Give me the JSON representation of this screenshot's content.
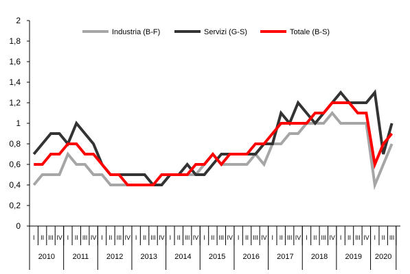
{
  "chart_data": {
    "type": "line",
    "title": "",
    "xlabel": "",
    "ylabel": "",
    "ylim": [
      0,
      2
    ],
    "yticks": [
      "0",
      "0,2",
      "0,4",
      "0,6",
      "0,8",
      "1",
      "1,2",
      "1,4",
      "1,6",
      "1,8",
      "2"
    ],
    "quarter_labels": [
      "I",
      "II",
      "III",
      "IV"
    ],
    "years": [
      "2010",
      "2011",
      "2012",
      "2013",
      "2014",
      "2015",
      "2016",
      "2017",
      "2018",
      "2019",
      "2020"
    ],
    "x": [
      "2010 I",
      "2010 II",
      "2010 III",
      "2010 IV",
      "2011 I",
      "2011 II",
      "2011 III",
      "2011 IV",
      "2012 I",
      "2012 II",
      "2012 III",
      "2012 IV",
      "2013 I",
      "2013 II",
      "2013 III",
      "2013 IV",
      "2014 I",
      "2014 II",
      "2014 III",
      "2014 IV",
      "2015 I",
      "2015 II",
      "2015 III",
      "2015 IV",
      "2016 I",
      "2016 II",
      "2016 III",
      "2016 IV",
      "2017 I",
      "2017 II",
      "2017 III",
      "2017 IV",
      "2018 I",
      "2018 II",
      "2018 III",
      "2018 IV",
      "2019 I",
      "2019 II",
      "2019 III",
      "2019 IV",
      "2020 I",
      "2020 II",
      "2020 III"
    ],
    "grid": false,
    "legend_position": "top",
    "series": [
      {
        "name": "Industria (B-F)",
        "color": "#a6a6a6",
        "values": [
          0.4,
          0.5,
          0.5,
          0.5,
          0.7,
          0.6,
          0.6,
          0.5,
          0.5,
          0.4,
          0.4,
          0.4,
          0.4,
          0.4,
          0.4,
          0.4,
          0.5,
          0.5,
          0.5,
          0.5,
          0.6,
          0.7,
          0.6,
          0.6,
          0.6,
          0.6,
          0.7,
          0.6,
          0.8,
          0.8,
          0.9,
          0.9,
          1.0,
          1.0,
          1.0,
          1.1,
          1.0,
          1.0,
          1.0,
          1.0,
          0.4,
          0.6,
          0.8
        ]
      },
      {
        "name": "Servizi (G-S)",
        "color": "#333333",
        "values": [
          0.7,
          0.8,
          0.9,
          0.9,
          0.8,
          1.0,
          0.9,
          0.8,
          0.6,
          0.5,
          0.5,
          0.5,
          0.5,
          0.5,
          0.4,
          0.4,
          0.5,
          0.5,
          0.6,
          0.5,
          0.5,
          0.6,
          0.7,
          0.7,
          0.7,
          0.7,
          0.7,
          0.8,
          0.8,
          1.1,
          1.0,
          1.2,
          1.1,
          1.0,
          1.1,
          1.2,
          1.3,
          1.2,
          1.2,
          1.2,
          1.3,
          0.7,
          1.0
        ]
      },
      {
        "name": "Totale (B-S)",
        "color": "#ff0000",
        "values": [
          0.6,
          0.6,
          0.7,
          0.7,
          0.8,
          0.8,
          0.7,
          0.7,
          0.6,
          0.5,
          0.5,
          0.4,
          0.4,
          0.4,
          0.4,
          0.5,
          0.5,
          0.5,
          0.5,
          0.6,
          0.6,
          0.7,
          0.6,
          0.7,
          0.7,
          0.7,
          0.8,
          0.8,
          0.9,
          1.0,
          1.0,
          1.0,
          1.0,
          1.1,
          1.1,
          1.2,
          1.2,
          1.2,
          1.1,
          1.1,
          0.6,
          0.8,
          0.9
        ]
      }
    ]
  }
}
